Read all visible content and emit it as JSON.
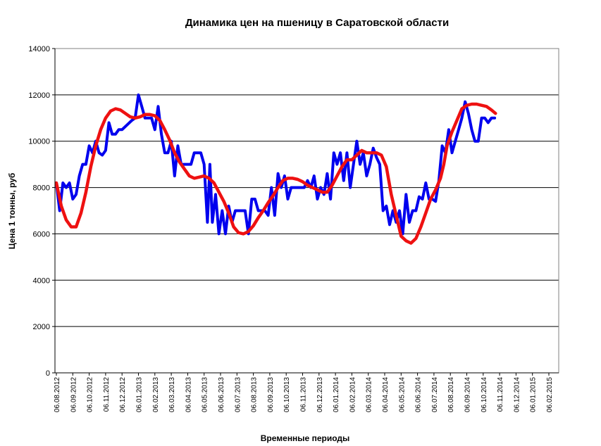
{
  "chart_data": {
    "type": "line",
    "title": "Динамика цен на пшеницу в Саратовской области",
    "xlabel": "Временные периоды",
    "ylabel": "Цена 1 тонны, руб",
    "ylim": [
      0,
      14000
    ],
    "yticks": [
      "0",
      "2000",
      "4000",
      "6000",
      "8000",
      "10000",
      "12000",
      "14000"
    ],
    "grid": true,
    "legend": "none",
    "x_tick_labels": [
      "06.08.2012",
      "06.09.2012",
      "06.10.2012",
      "06.11.2012",
      "06.12.2012",
      "06.01.2013",
      "06.02.2013",
      "06.03.2013",
      "06.04.2013",
      "06.05.2013",
      "06.06.2013",
      "06.07.2013",
      "06.08.2013",
      "06.09.2013",
      "06.10.2013",
      "06.11.2013",
      "06.12.2013",
      "06.01.2014",
      "06.02.2014",
      "06.03.2014",
      "06.04.2014",
      "06.05.2014",
      "06.06.2014",
      "06.07.2014",
      "06.08.2014",
      "06.09.2014",
      "06.10.2014",
      "06.11.2014",
      "06.12.2014",
      "06.01.2015",
      "06.02.2015"
    ],
    "series": [
      {
        "color": "#0000ee",
        "points": [
          [
            0,
            8200
          ],
          [
            0.2,
            7000
          ],
          [
            0.4,
            8200
          ],
          [
            0.6,
            8000
          ],
          [
            0.8,
            8200
          ],
          [
            1.0,
            7500
          ],
          [
            1.2,
            7700
          ],
          [
            1.4,
            8500
          ],
          [
            1.6,
            9000
          ],
          [
            1.8,
            9000
          ],
          [
            2.0,
            9800
          ],
          [
            2.2,
            9500
          ],
          [
            2.4,
            10000
          ],
          [
            2.6,
            9500
          ],
          [
            2.8,
            9400
          ],
          [
            3.0,
            9600
          ],
          [
            3.2,
            10800
          ],
          [
            3.4,
            10300
          ],
          [
            3.6,
            10300
          ],
          [
            3.8,
            10500
          ],
          [
            4.0,
            10500
          ],
          [
            4.3,
            10700
          ],
          [
            4.6,
            10900
          ],
          [
            4.8,
            11000
          ],
          [
            5.0,
            12000
          ],
          [
            5.2,
            11500
          ],
          [
            5.4,
            11000
          ],
          [
            5.6,
            11000
          ],
          [
            5.8,
            11000
          ],
          [
            6.0,
            10500
          ],
          [
            6.2,
            11500
          ],
          [
            6.4,
            10300
          ],
          [
            6.6,
            9500
          ],
          [
            6.8,
            9500
          ],
          [
            7.0,
            10000
          ],
          [
            7.2,
            8500
          ],
          [
            7.4,
            9800
          ],
          [
            7.6,
            9000
          ],
          [
            7.8,
            9000
          ],
          [
            8.0,
            9000
          ],
          [
            8.2,
            9000
          ],
          [
            8.4,
            9500
          ],
          [
            8.6,
            9500
          ],
          [
            8.8,
            9500
          ],
          [
            9.0,
            9000
          ],
          [
            9.2,
            6500
          ],
          [
            9.35,
            9000
          ],
          [
            9.5,
            6500
          ],
          [
            9.7,
            7700
          ],
          [
            9.9,
            6000
          ],
          [
            10.1,
            7000
          ],
          [
            10.3,
            6000
          ],
          [
            10.5,
            7200
          ],
          [
            10.7,
            6500
          ],
          [
            10.9,
            7000
          ],
          [
            11.1,
            7000
          ],
          [
            11.3,
            7000
          ],
          [
            11.5,
            7000
          ],
          [
            11.7,
            6000
          ],
          [
            11.9,
            7500
          ],
          [
            12.1,
            7500
          ],
          [
            12.3,
            7000
          ],
          [
            12.5,
            7000
          ],
          [
            12.7,
            7000
          ],
          [
            12.9,
            6800
          ],
          [
            13.1,
            8000
          ],
          [
            13.3,
            6800
          ],
          [
            13.5,
            8600
          ],
          [
            13.7,
            8000
          ],
          [
            13.9,
            8500
          ],
          [
            14.1,
            7500
          ],
          [
            14.3,
            8000
          ],
          [
            14.5,
            8000
          ],
          [
            14.7,
            8000
          ],
          [
            14.9,
            8000
          ],
          [
            15.1,
            8000
          ],
          [
            15.3,
            8300
          ],
          [
            15.5,
            8000
          ],
          [
            15.7,
            8500
          ],
          [
            15.9,
            7500
          ],
          [
            16.1,
            8000
          ],
          [
            16.3,
            7700
          ],
          [
            16.5,
            8600
          ],
          [
            16.7,
            7500
          ],
          [
            16.9,
            9500
          ],
          [
            17.1,
            9000
          ],
          [
            17.3,
            9500
          ],
          [
            17.5,
            8300
          ],
          [
            17.7,
            9500
          ],
          [
            17.9,
            8000
          ],
          [
            18.1,
            9000
          ],
          [
            18.3,
            10000
          ],
          [
            18.5,
            9000
          ],
          [
            18.7,
            9500
          ],
          [
            18.9,
            8500
          ],
          [
            19.1,
            9000
          ],
          [
            19.3,
            9700
          ],
          [
            19.5,
            9300
          ],
          [
            19.7,
            9000
          ],
          [
            19.9,
            7000
          ],
          [
            20.1,
            7200
          ],
          [
            20.3,
            6400
          ],
          [
            20.5,
            7000
          ],
          [
            20.7,
            6500
          ],
          [
            20.9,
            7000
          ],
          [
            21.1,
            6000
          ],
          [
            21.3,
            7700
          ],
          [
            21.5,
            6500
          ],
          [
            21.7,
            7000
          ],
          [
            21.9,
            7000
          ],
          [
            22.1,
            7600
          ],
          [
            22.3,
            7500
          ],
          [
            22.5,
            8200
          ],
          [
            22.7,
            7500
          ],
          [
            22.9,
            7500
          ],
          [
            23.1,
            7400
          ],
          [
            23.3,
            8300
          ],
          [
            23.5,
            9800
          ],
          [
            23.7,
            9500
          ],
          [
            23.9,
            10500
          ],
          [
            24.1,
            9500
          ],
          [
            24.3,
            10000
          ],
          [
            24.5,
            10500
          ],
          [
            24.7,
            11000
          ],
          [
            24.9,
            11700
          ],
          [
            25.1,
            11200
          ],
          [
            25.3,
            10500
          ],
          [
            25.5,
            10000
          ],
          [
            25.7,
            10000
          ],
          [
            25.9,
            11000
          ],
          [
            26.1,
            11000
          ],
          [
            26.3,
            10800
          ],
          [
            26.5,
            11000
          ],
          [
            26.7,
            11000
          ]
        ]
      },
      {
        "color": "#ee1111",
        "points": [
          [
            0,
            8200
          ],
          [
            0.3,
            7200
          ],
          [
            0.6,
            6600
          ],
          [
            0.9,
            6300
          ],
          [
            1.2,
            6300
          ],
          [
            1.5,
            6900
          ],
          [
            1.8,
            7800
          ],
          [
            2.1,
            8900
          ],
          [
            2.4,
            9800
          ],
          [
            2.7,
            10500
          ],
          [
            3.0,
            11000
          ],
          [
            3.3,
            11300
          ],
          [
            3.6,
            11400
          ],
          [
            3.9,
            11350
          ],
          [
            4.2,
            11200
          ],
          [
            4.5,
            11050
          ],
          [
            4.8,
            11000
          ],
          [
            5.1,
            11050
          ],
          [
            5.4,
            11150
          ],
          [
            5.7,
            11150
          ],
          [
            6.0,
            11100
          ],
          [
            6.3,
            10900
          ],
          [
            6.6,
            10500
          ],
          [
            6.9,
            10050
          ],
          [
            7.2,
            9500
          ],
          [
            7.5,
            9100
          ],
          [
            7.8,
            8800
          ],
          [
            8.1,
            8500
          ],
          [
            8.4,
            8400
          ],
          [
            8.7,
            8450
          ],
          [
            9.0,
            8500
          ],
          [
            9.3,
            8400
          ],
          [
            9.6,
            8200
          ],
          [
            9.9,
            7800
          ],
          [
            10.2,
            7400
          ],
          [
            10.5,
            6900
          ],
          [
            10.8,
            6300
          ],
          [
            11.1,
            6050
          ],
          [
            11.4,
            6000
          ],
          [
            11.7,
            6100
          ],
          [
            12.0,
            6350
          ],
          [
            12.3,
            6700
          ],
          [
            12.6,
            7000
          ],
          [
            12.9,
            7350
          ],
          [
            13.2,
            7650
          ],
          [
            13.5,
            8000
          ],
          [
            13.8,
            8300
          ],
          [
            14.1,
            8400
          ],
          [
            14.4,
            8400
          ],
          [
            14.7,
            8350
          ],
          [
            15.0,
            8250
          ],
          [
            15.3,
            8100
          ],
          [
            15.6,
            8000
          ],
          [
            15.9,
            7900
          ],
          [
            16.2,
            7800
          ],
          [
            16.5,
            7800
          ],
          [
            16.8,
            8100
          ],
          [
            17.1,
            8500
          ],
          [
            17.4,
            8900
          ],
          [
            17.7,
            9200
          ],
          [
            18.0,
            9200
          ],
          [
            18.3,
            9400
          ],
          [
            18.6,
            9600
          ],
          [
            18.9,
            9500
          ],
          [
            19.2,
            9500
          ],
          [
            19.5,
            9500
          ],
          [
            19.8,
            9400
          ],
          [
            20.1,
            8900
          ],
          [
            20.4,
            7700
          ],
          [
            20.7,
            6800
          ],
          [
            21.0,
            5900
          ],
          [
            21.3,
            5700
          ],
          [
            21.6,
            5600
          ],
          [
            21.9,
            5800
          ],
          [
            22.2,
            6300
          ],
          [
            22.5,
            6900
          ],
          [
            22.8,
            7500
          ],
          [
            23.1,
            7900
          ],
          [
            23.4,
            8400
          ],
          [
            23.6,
            9000
          ],
          [
            23.8,
            9800
          ],
          [
            24.1,
            10400
          ],
          [
            24.4,
            10900
          ],
          [
            24.7,
            11400
          ],
          [
            25.0,
            11550
          ],
          [
            25.3,
            11600
          ],
          [
            25.6,
            11600
          ],
          [
            25.9,
            11550
          ],
          [
            26.2,
            11500
          ],
          [
            26.5,
            11350
          ],
          [
            26.75,
            11200
          ]
        ]
      }
    ]
  }
}
